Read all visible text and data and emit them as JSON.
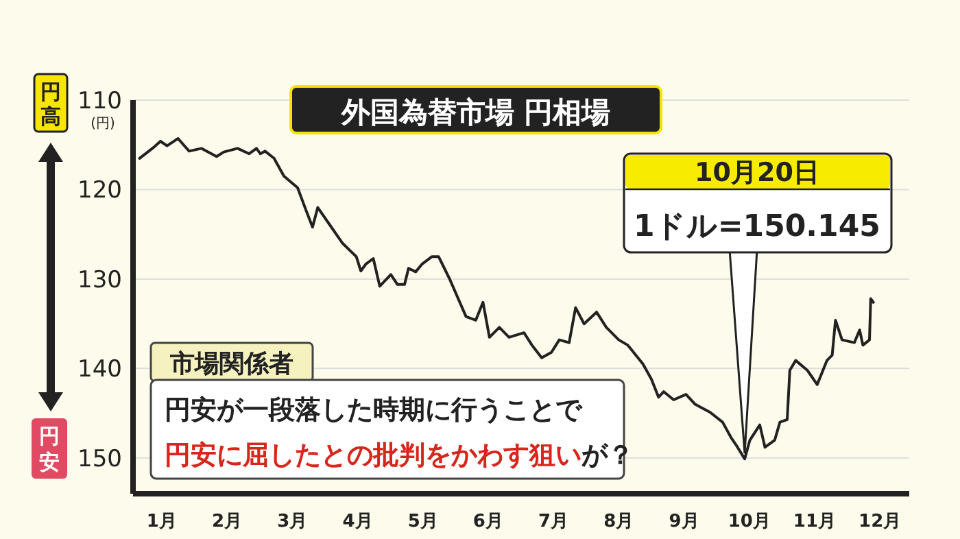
{
  "chart_data": {
    "type": "line",
    "title": "外国為替市場 円相場",
    "ylabel": "(円)",
    "x": [
      0.66,
      0.89,
      0.98,
      1.08,
      1.25,
      1.42,
      1.61,
      1.84,
      1.95,
      2.16,
      2.34,
      2.45,
      2.51,
      2.58,
      2.72,
      2.87,
      3.08,
      3.21,
      3.31,
      3.39,
      3.56,
      3.77,
      3.98,
      4.05,
      4.13,
      4.24,
      4.34,
      4.51,
      4.61,
      4.72,
      4.78,
      4.89,
      4.99,
      5.14,
      5.24,
      5.41,
      5.66,
      5.81,
      5.92,
      6.02,
      6.17,
      6.32,
      6.55,
      6.67,
      6.82,
      6.97,
      7.09,
      7.24,
      7.34,
      7.47,
      7.66,
      7.81,
      8.0,
      8.14,
      8.37,
      8.5,
      8.61,
      8.69,
      8.84,
      9.03,
      9.17,
      9.4,
      9.59,
      9.72,
      9.82,
      9.93,
      10.01,
      10.16,
      10.24,
      10.39,
      10.47,
      10.58,
      10.62,
      10.71,
      10.89,
      11.04,
      11.19,
      11.27,
      11.32,
      11.42,
      11.61,
      11.69,
      11.74,
      11.84,
      11.86,
      11.9
    ],
    "series": [
      {
        "color": "#222222",
        "values": [
          116.5,
          115.2,
          114.6,
          115.1,
          114.3,
          115.7,
          115.4,
          116.3,
          115.8,
          115.4,
          116,
          115.4,
          116,
          115.7,
          116.5,
          118.5,
          119.8,
          122.3,
          124.2,
          122,
          123.8,
          126,
          127.5,
          129.1,
          128.3,
          127.7,
          130.8,
          129.5,
          130.6,
          130.6,
          128.8,
          129.2,
          128.3,
          127.5,
          127.5,
          130,
          134.2,
          134.6,
          132.6,
          136.5,
          135.4,
          136.5,
          136,
          137.4,
          138.8,
          138.2,
          136.8,
          137.1,
          133.2,
          135,
          133.7,
          135.4,
          136.8,
          137.4,
          139.5,
          141.2,
          143.2,
          142.6,
          143.5,
          142.9,
          144,
          144.9,
          146,
          147.7,
          148.8,
          150.1,
          148,
          146.3,
          148.8,
          148,
          146,
          145.7,
          140.2,
          139.1,
          140.2,
          141.8,
          139.1,
          138.5,
          134.6,
          136.8,
          137.1,
          135.7,
          137.4,
          136.8,
          132.2,
          132.6
        ]
      }
    ],
    "xlim": [
      0.56,
      12.45
    ],
    "ylim": [
      154,
      110
    ],
    "xticks": [
      {
        "value": 1,
        "label": "1月"
      },
      {
        "value": 2,
        "label": "2月"
      },
      {
        "value": 3,
        "label": "3月"
      },
      {
        "value": 4,
        "label": "4月"
      },
      {
        "value": 5,
        "label": "5月"
      },
      {
        "value": 6,
        "label": "6月"
      },
      {
        "value": 7,
        "label": "7月"
      },
      {
        "value": 8,
        "label": "8月"
      },
      {
        "value": 9,
        "label": "9月"
      },
      {
        "value": 10,
        "label": "10月"
      },
      {
        "value": 11,
        "label": "11月"
      },
      {
        "value": 12,
        "label": "12月"
      }
    ],
    "yticks": [
      110,
      120,
      130,
      140,
      150
    ],
    "grid": "y",
    "line_style": "solid",
    "annotations": [
      "円高",
      "円安",
      "市場関係者",
      "円安が一段落した時期に行うことで",
      "円安に屈したとの批判をかわす狙い",
      "が？",
      "10月20日",
      {
        "text": "1ドル=150.145",
        "x": 9.93,
        "y": 150.1
      }
    ]
  }
}
